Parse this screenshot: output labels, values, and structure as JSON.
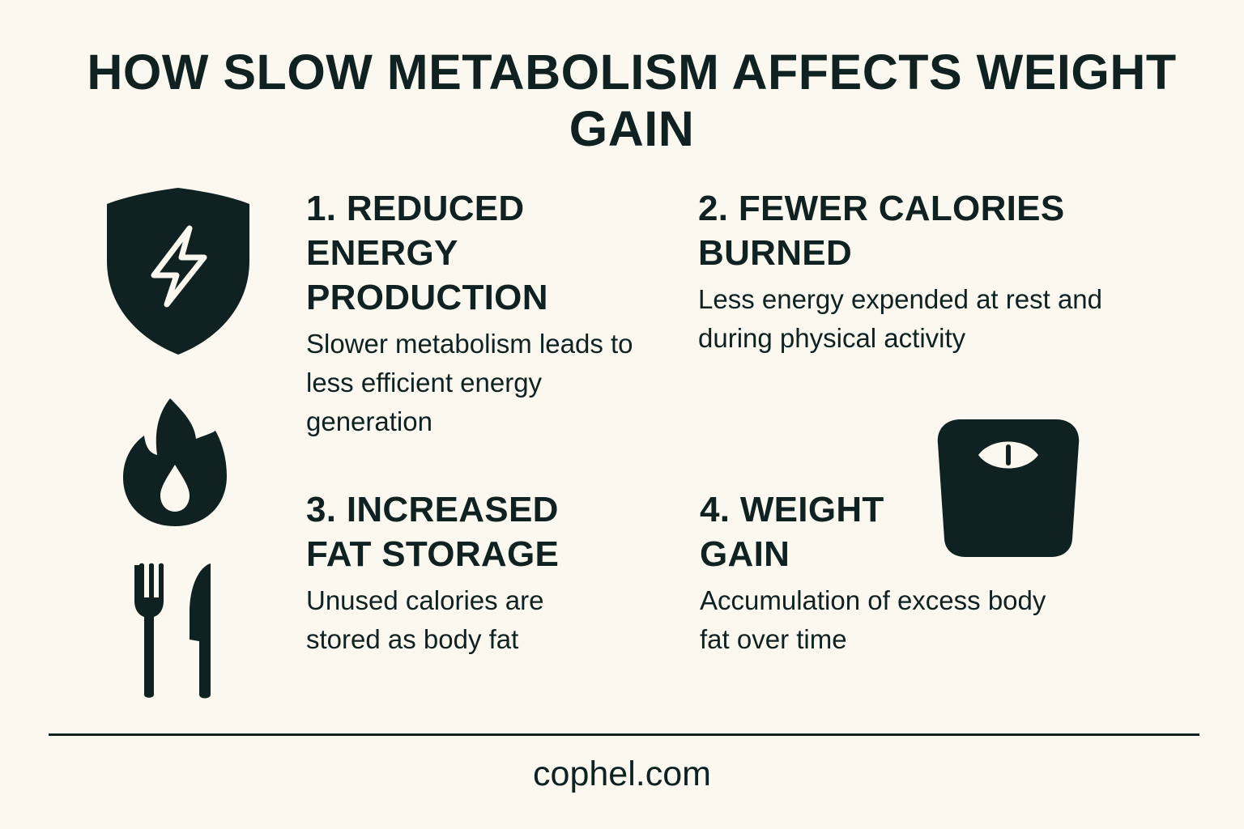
{
  "title": "HOW SLOW METABOLISM AFFECTS WEIGHT GAIN",
  "colors": {
    "background": "#fbf8f0",
    "ink": "#0f2121"
  },
  "icons": {
    "energy": "shield-lightning-icon",
    "fire": "flame-droplet-icon",
    "food": "fork-knife-icon",
    "scale": "bathroom-scale-icon"
  },
  "sections": [
    {
      "heading": "1. REDUCED ENERGY PRODUCTION",
      "body": "Slower metabolism leads to less efficient energy generation"
    },
    {
      "heading": "2. FEWER CALORIES BURNED",
      "body": "Less energy expended at rest and during physical activity"
    },
    {
      "heading": "3. INCREASED FAT STORAGE",
      "body": "Unused calories are stored as body fat"
    },
    {
      "heading": "4. WEIGHT GAIN",
      "body": "Accumulation of excess body fat over time"
    }
  ],
  "footer": "cophel.com"
}
